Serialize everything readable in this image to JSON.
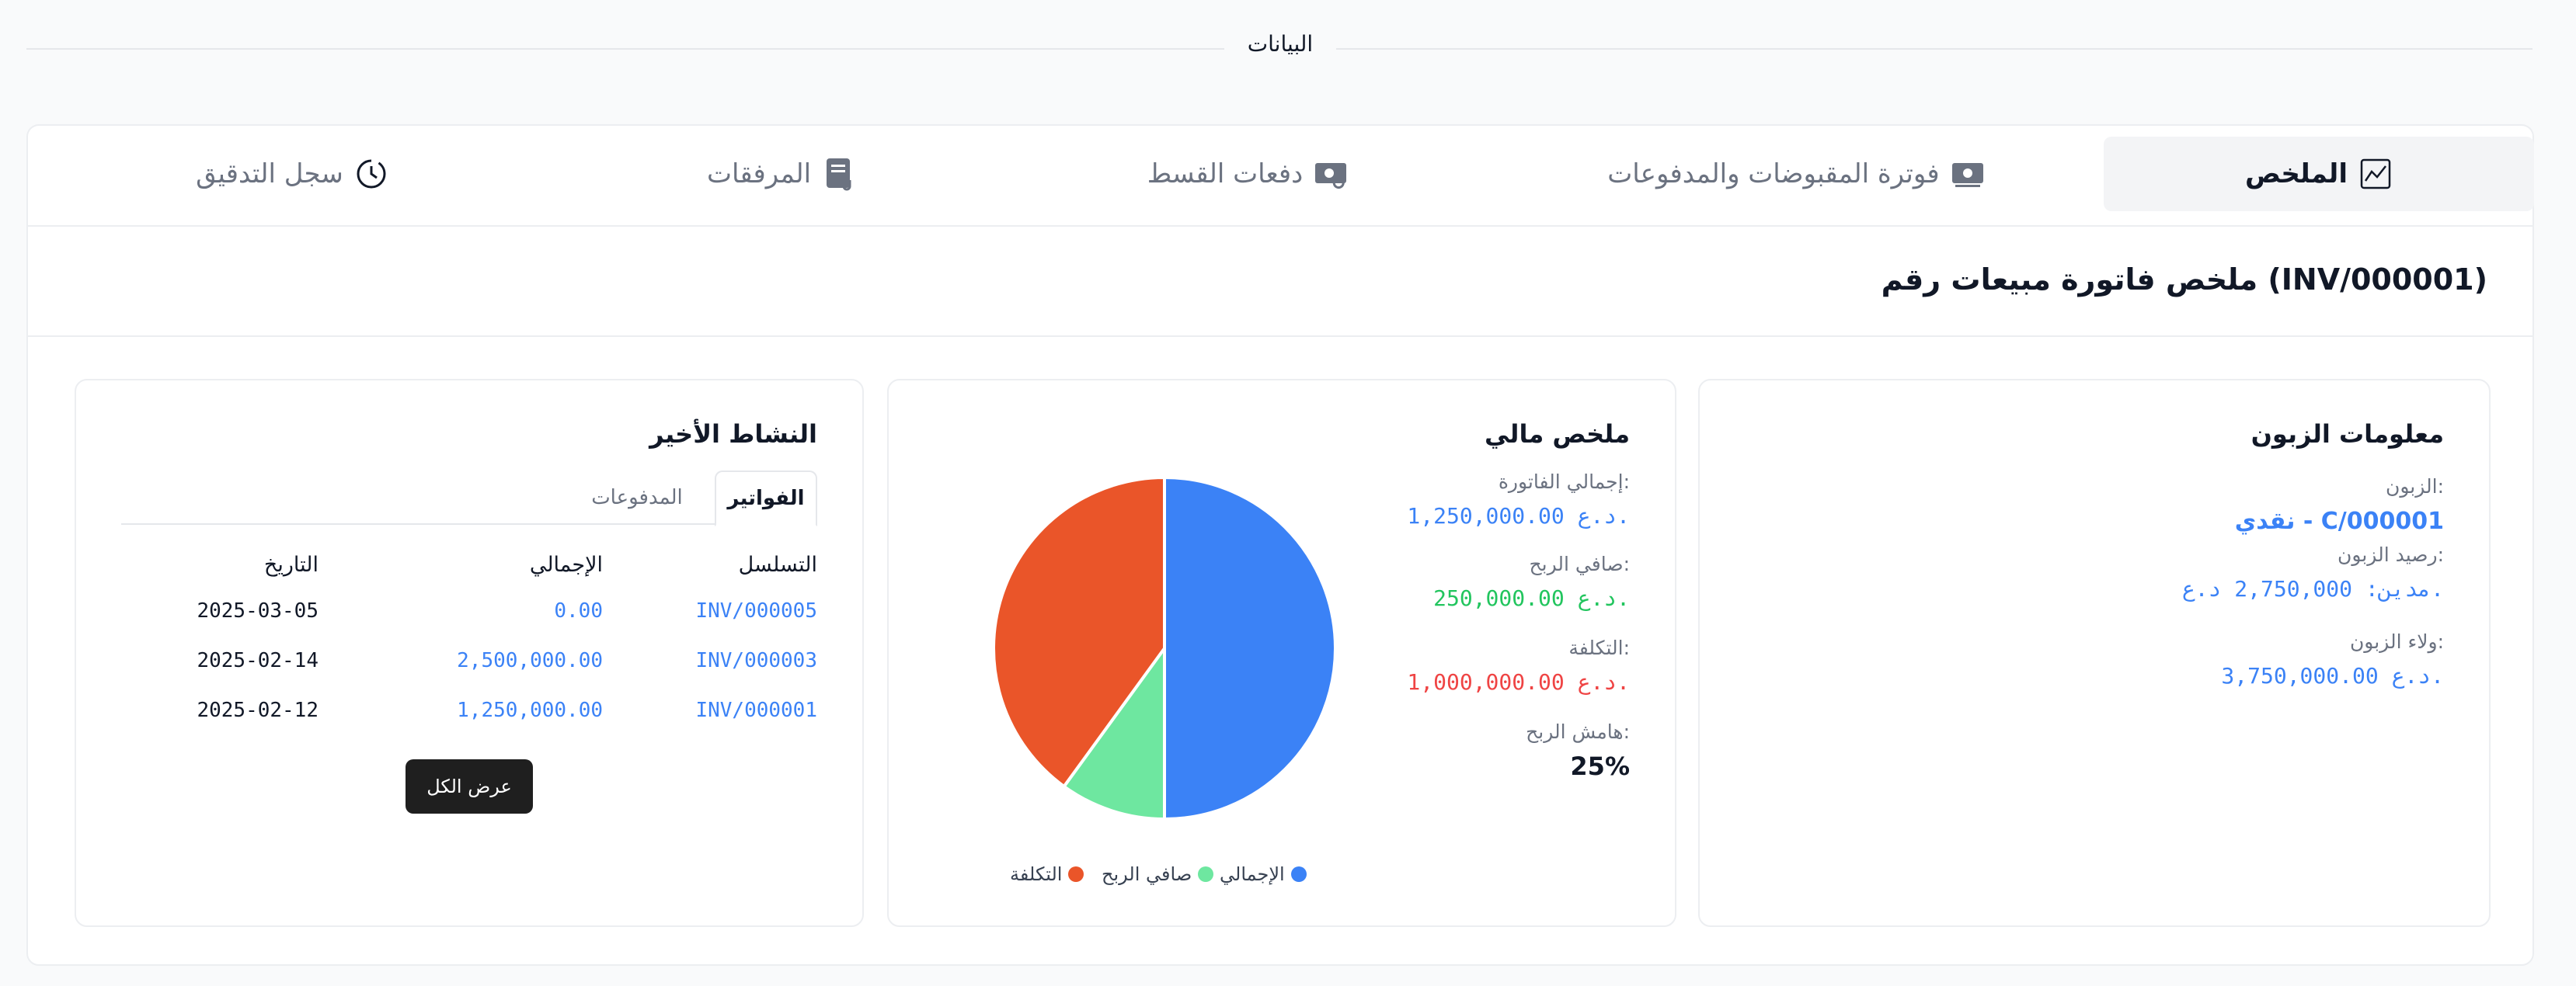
{
  "section": {
    "title": "البيانات"
  },
  "tabs": [
    {
      "label": "الملخص",
      "icon": "chart-line-icon",
      "active": true
    },
    {
      "label": "فوترة المقبوضات والمدفوعات",
      "icon": "money-bill-icon",
      "active": false
    },
    {
      "label": "دفعات القسط",
      "icon": "money-rotate-icon",
      "active": false
    },
    {
      "label": "المرفقات",
      "icon": "file-attachment-icon",
      "active": false
    },
    {
      "label": "سجل التدقيق",
      "icon": "clock-history-icon",
      "active": false
    }
  ],
  "page_title": "ملخص فاتورة مبيعات رقم (INV/000001)",
  "customer": {
    "title": "معلومات الزبون",
    "customer_label": "الزبون:",
    "customer_value": "نقدي - C/000001",
    "balance_label": "رصيد الزبون:",
    "balance_value": "مدين: 2,750,000 د.ع.",
    "loyalty_label": "ولاء الزبون:",
    "loyalty_value": "3,750,000.00 د.ع."
  },
  "finance": {
    "title": "ملخص مالي",
    "total_label": "إجمالي الفاتورة:",
    "total_value": "1,250,000.00 د.ع.",
    "profit_label": "صافي الربح:",
    "profit_value": "250,000.00 د.ع.",
    "cost_label": "التكلفة:",
    "cost_value": "1,000,000.00 د.ع.",
    "margin_label": "هامش الربح:",
    "margin_value": "25%"
  },
  "chart_data": {
    "type": "pie",
    "series": [
      {
        "name": "الإجمالي",
        "value": 1250000,
        "color": "#3b82f6"
      },
      {
        "name": "صافي الربح",
        "value": 250000,
        "color": "#6ee7a0"
      },
      {
        "name": "التكلفة",
        "value": 1000000,
        "color": "#ea5529"
      }
    ],
    "legend": "bottom"
  },
  "activity": {
    "title": "النشاط الأخير",
    "tab_invoices": "الفواتير",
    "tab_payments": "المدفوعات",
    "columns": [
      "التسلسل",
      "الإجمالي",
      "التاريخ"
    ],
    "rows": [
      {
        "serial": "INV/000005",
        "total": "0.00",
        "date": "2025-03-05"
      },
      {
        "serial": "INV/000003",
        "total": "2,500,000.00",
        "date": "2025-02-14"
      },
      {
        "serial": "INV/000001",
        "total": "1,250,000.00",
        "date": "2025-02-12"
      }
    ],
    "view_all": "عرض الكل"
  }
}
